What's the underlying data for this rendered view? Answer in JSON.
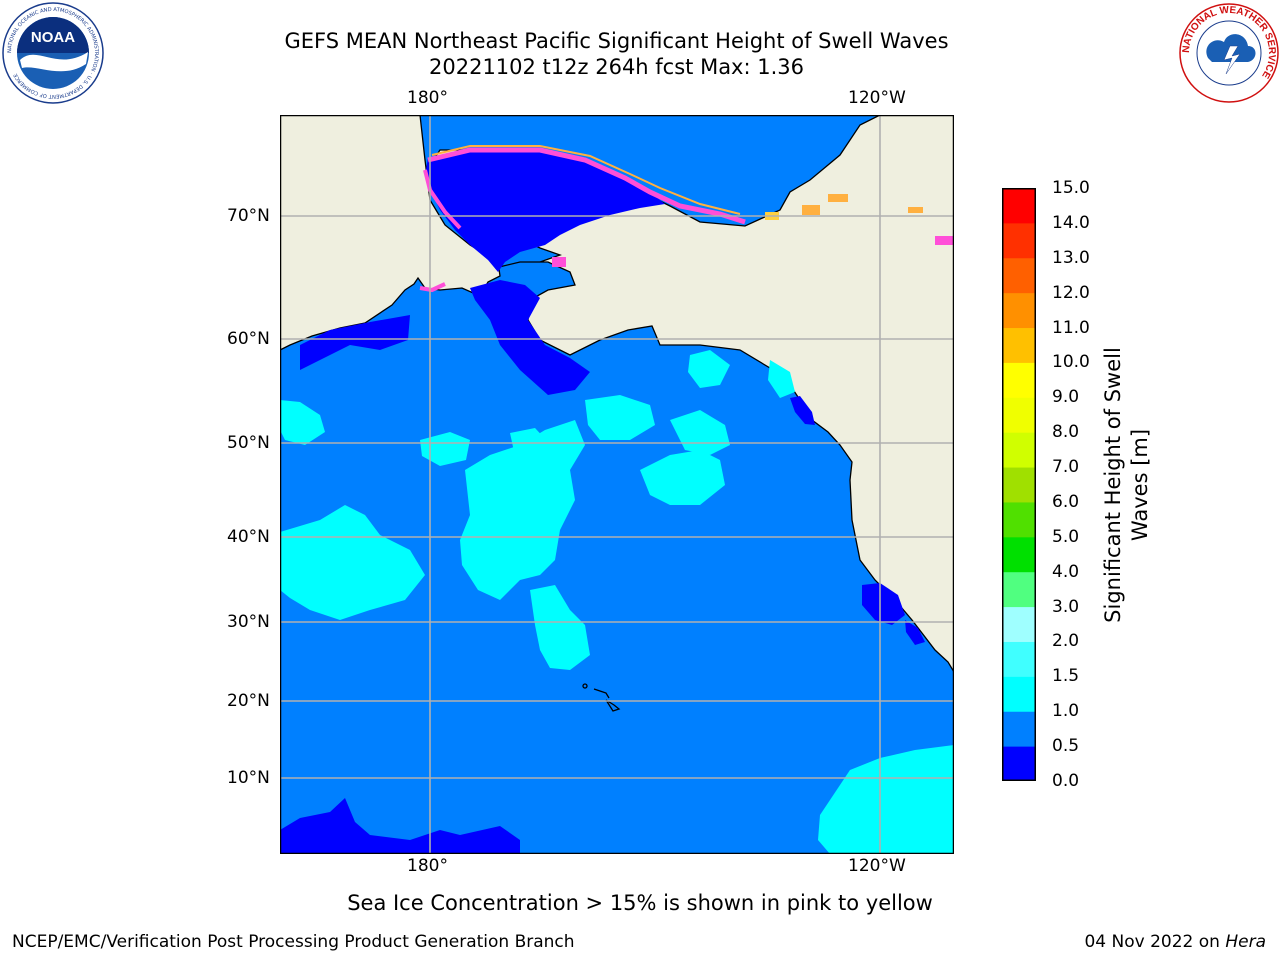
{
  "header": {
    "title_line1": "GEFS MEAN Northeast Pacific Significant Height of Swell Waves",
    "title_line2": "20221102 t12z 264h fcst   Max: 1.36"
  },
  "logos": {
    "left": {
      "name": "noaa-logo",
      "text": "NOAA",
      "ring_text": "NATIONAL OCEANIC AND ATMOSPHERIC ADMINISTRATION · U.S. DEPARTMENT OF COMMERCE"
    },
    "right": {
      "name": "nws-logo",
      "ring_text": "NATIONAL WEATHER SERVICE"
    }
  },
  "map": {
    "lon_labels": [
      "180°",
      "120°W"
    ],
    "lat_labels": [
      "70°N",
      "60°N",
      "50°N",
      "40°N",
      "30°N",
      "20°N",
      "10°N"
    ],
    "land_color": "#efefdf",
    "ocean_color": "#0080ff"
  },
  "colorbar": {
    "label_line1": "Significant Height of Swell",
    "label_line2": "Waves [m]",
    "ticks": [
      "15.0",
      "14.0",
      "13.0",
      "12.0",
      "11.0",
      "10.0",
      "9.0",
      "8.0",
      "7.0",
      "6.0",
      "5.0",
      "4.0",
      "3.0",
      "2.0",
      "1.5",
      "1.0",
      "0.5",
      "0.0"
    ],
    "colors": [
      "#0000ff",
      "#0080ff",
      "#00ffff",
      "#40ffff",
      "#9fffff",
      "#50ff80",
      "#00e000",
      "#50e000",
      "#a0e000",
      "#d0ff00",
      "#f0ff00",
      "#ffff00",
      "#ffc000",
      "#ff9000",
      "#ff6000",
      "#ff3000",
      "#ff0000"
    ]
  },
  "notes": {
    "sea_ice": "Sea Ice Concentration > 15% is shown in pink to yellow"
  },
  "footer": {
    "left": "NCEP/EMC/Verification Post Processing Product Generation Branch",
    "right_prefix": "04 Nov 2022 on ",
    "right_host": "Hera"
  }
}
